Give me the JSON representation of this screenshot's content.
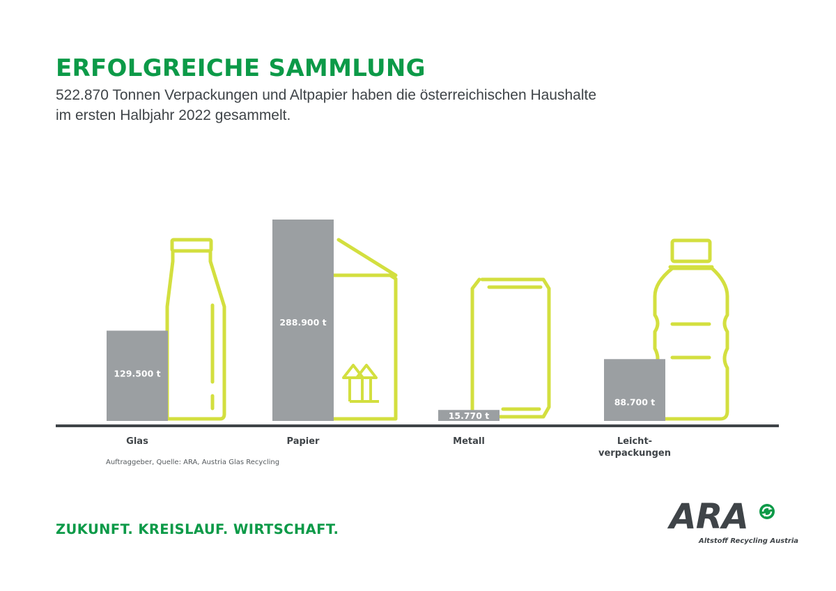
{
  "title": "ERFOLGREICHE SAMMLUNG",
  "subtitle_line1": "522.870 Tonnen Verpackungen und Altpapier haben die österreichischen Haushalte",
  "subtitle_line2": "im ersten Halbjahr 2022 gesammelt.",
  "source": "Auftraggeber, Quelle: ARA, Austria Glas Recycling",
  "slogan": "ZUKUNFT. KREISLAUF. WIRTSCHAFT.",
  "logo": {
    "letters": "ARA",
    "subtitle": "Altstoff Recycling Austria"
  },
  "colors": {
    "bar": "#9b9fa2",
    "icon": "#d3df3f",
    "axis": "#3f4448",
    "accent": "#0c9a48"
  },
  "chart_data": {
    "type": "bar",
    "categories": [
      "Glas",
      "Papier",
      "Metall",
      "Leicht-\nverpackungen"
    ],
    "values": [
      129500,
      288900,
      15770,
      88700
    ],
    "value_labels": [
      "129.500 t",
      "288.900 t",
      "15.770 t",
      "88.700 t"
    ],
    "icons": [
      "glass-bottle-icon",
      "paper-box-icon",
      "metal-can-icon",
      "plastic-bottle-icon"
    ],
    "ylim": [
      0,
      288900
    ],
    "grid": false,
    "legend": "none"
  }
}
